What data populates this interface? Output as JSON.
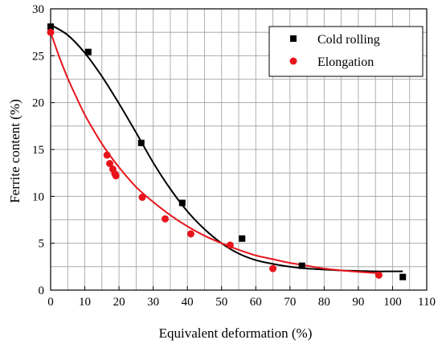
{
  "chart_data": {
    "type": "scatter",
    "title": "",
    "xlabel": "Equivalent deformation (%)",
    "ylabel": "Ferrite content (%)",
    "xlim": [
      0,
      110
    ],
    "ylim": [
      0,
      30
    ],
    "xticks": [
      0,
      10,
      20,
      30,
      40,
      50,
      60,
      70,
      80,
      90,
      100,
      110
    ],
    "yticks": [
      0,
      5,
      10,
      15,
      20,
      25,
      30
    ],
    "x_minor_step": 5,
    "y_minor_step": 2.5,
    "grid": true,
    "legend_position": "top-right",
    "series": [
      {
        "name": "Cold rolling",
        "marker": "square",
        "color": "#000000",
        "points": [
          [
            0,
            28.1
          ],
          [
            11,
            25.4
          ],
          [
            26.5,
            15.7
          ],
          [
            38.5,
            9.3
          ],
          [
            56,
            5.5
          ],
          [
            73.5,
            2.6
          ],
          [
            103,
            1.4
          ]
        ],
        "fit_curve": [
          [
            0,
            28.3
          ],
          [
            5,
            27.2
          ],
          [
            10,
            25.3
          ],
          [
            15,
            22.8
          ],
          [
            20,
            19.9
          ],
          [
            25,
            16.8
          ],
          [
            30,
            13.6
          ],
          [
            35,
            10.8
          ],
          [
            40,
            8.4
          ],
          [
            45,
            6.5
          ],
          [
            50,
            5.0
          ],
          [
            55,
            3.9
          ],
          [
            60,
            3.2
          ],
          [
            65,
            2.8
          ],
          [
            70,
            2.5
          ],
          [
            75,
            2.3
          ],
          [
            80,
            2.2
          ],
          [
            85,
            2.1
          ],
          [
            90,
            2.05
          ],
          [
            95,
            2.0
          ],
          [
            100,
            2.0
          ],
          [
            103,
            2.0
          ]
        ]
      },
      {
        "name": "Elongation",
        "marker": "circle",
        "color": "#e8141b",
        "points": [
          [
            0,
            27.5
          ],
          [
            16.5,
            14.4
          ],
          [
            17.3,
            13.5
          ],
          [
            18.2,
            12.9
          ],
          [
            18.8,
            12.4
          ],
          [
            19.1,
            12.2
          ],
          [
            26.8,
            9.9
          ],
          [
            33.5,
            7.6
          ],
          [
            41,
            6.0
          ],
          [
            52.5,
            4.8
          ],
          [
            65,
            2.3
          ],
          [
            96,
            1.6
          ]
        ],
        "fit_curve": [
          [
            0,
            27.5
          ],
          [
            2.5,
            24.9
          ],
          [
            5,
            22.6
          ],
          [
            7.5,
            20.6
          ],
          [
            10,
            18.7
          ],
          [
            12.5,
            17.1
          ],
          [
            15,
            15.6
          ],
          [
            17.5,
            14.3
          ],
          [
            20,
            13.1
          ],
          [
            25,
            11.0
          ],
          [
            30,
            9.4
          ],
          [
            35,
            8.0
          ],
          [
            40,
            6.8
          ],
          [
            45,
            5.8
          ],
          [
            50,
            5.0
          ],
          [
            55,
            4.3
          ],
          [
            60,
            3.7
          ],
          [
            65,
            3.3
          ],
          [
            70,
            2.9
          ],
          [
            75,
            2.6
          ],
          [
            80,
            2.3
          ],
          [
            85,
            2.1
          ],
          [
            90,
            1.95
          ],
          [
            96,
            1.8
          ]
        ]
      }
    ]
  }
}
